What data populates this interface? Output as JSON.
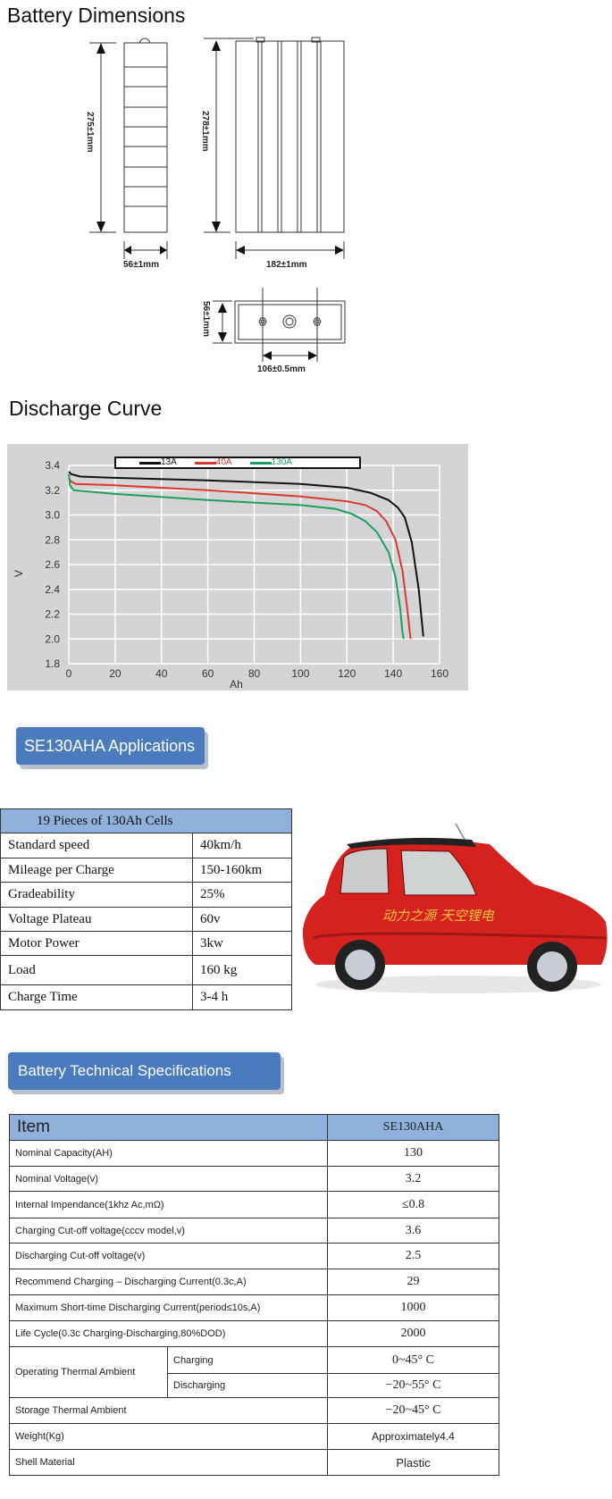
{
  "dimensions": {
    "title": "Battery Dimensions",
    "height_side": "275±1mm",
    "width_side": "56±1mm",
    "height_front": "278±1mm",
    "width_front": "182±1mm",
    "depth_top": "56±1mm",
    "terminal_spacing": "106±0.5mm"
  },
  "discharge": {
    "title": "Discharge Curve"
  },
  "chart_data": {
    "type": "line",
    "title": "",
    "xlabel": "Ah",
    "ylabel": "V",
    "xlim": [
      0,
      160
    ],
    "ylim": [
      1.8,
      3.4
    ],
    "xticks": [
      "0",
      "20",
      "40",
      "60",
      "80",
      "100",
      "120",
      "140",
      "160"
    ],
    "yticks": [
      "1.8",
      "2.0",
      "2.2",
      "2.4",
      "2.6",
      "2.8",
      "3.0",
      "3.2",
      "3.4"
    ],
    "grid": true,
    "legend": "top",
    "series": [
      {
        "name": "13A",
        "color": "#111111",
        "x": [
          0,
          1,
          5,
          20,
          60,
          100,
          120,
          130,
          138,
          142,
          145,
          148,
          151,
          153
        ],
        "y": [
          3.35,
          3.33,
          3.31,
          3.3,
          3.28,
          3.25,
          3.22,
          3.18,
          3.12,
          3.06,
          2.98,
          2.78,
          2.4,
          2.02
        ]
      },
      {
        "name": "40A",
        "color": "#d93a2b",
        "x": [
          0,
          1,
          3,
          20,
          60,
          100,
          120,
          128,
          133,
          137,
          141,
          144,
          146,
          147.5
        ],
        "y": [
          3.3,
          3.27,
          3.25,
          3.24,
          3.2,
          3.15,
          3.11,
          3.08,
          3.03,
          2.95,
          2.8,
          2.55,
          2.25,
          2.0
        ]
      },
      {
        "name": "130A",
        "color": "#1aa160",
        "x": [
          0,
          0.5,
          2,
          20,
          60,
          100,
          115,
          122,
          128,
          133,
          138,
          141,
          143,
          144,
          144.5
        ],
        "y": [
          3.33,
          3.24,
          3.2,
          3.17,
          3.12,
          3.08,
          3.05,
          3.01,
          2.95,
          2.86,
          2.7,
          2.5,
          2.25,
          2.05,
          2.0
        ]
      }
    ]
  },
  "applications": {
    "button_label": "SE130AHA  Applications",
    "table_title": "19 Pieces of 130Ah Cells",
    "rows": [
      {
        "label": "Standard speed",
        "value": "40km/h"
      },
      {
        "label": "Mileage per Charge",
        "value": "150-160km"
      },
      {
        "label": "Gradeability",
        "value": "25%"
      },
      {
        "label": "Voltage Plateau",
        "value": "60v"
      },
      {
        "label": "Motor Power",
        "value": "3kw"
      },
      {
        "label": "Load",
        "value": "160 kg"
      },
      {
        "label": "Charge Time",
        "value": "3-4 h"
      }
    ],
    "car_decal": "动力之源 天空锂电"
  },
  "specs": {
    "button_label": "Battery Technical Specifications",
    "header_item": "Item",
    "header_model": "SE130AHA",
    "rows": [
      {
        "label": "Nominal Capacity(AH)",
        "value": "130"
      },
      {
        "label": "Nominal Voltage(v)",
        "value": "3.2"
      },
      {
        "label": "Internal Impendance(1khz Ac,mΩ)",
        "value": "≤0.8"
      },
      {
        "label": "Charging Cut-off voltage(cccv model,v)",
        "value": "3.6"
      },
      {
        "label": "Discharging Cut-off voltage(v)",
        "value": "2.5"
      },
      {
        "label": "Recommend Charging – Discharging Current(0.3c,A)",
        "value": "29"
      },
      {
        "label": "Maximum Short-time Discharging Current(period≤10s,A)",
        "value": "1000"
      },
      {
        "label": "Life Cycle(0.3c Charging-Discharging,80%DOD)",
        "value": "2000"
      }
    ],
    "operating": {
      "label": "Operating Thermal Ambient",
      "charging_label": "Charging",
      "charging_value": "0~45° C",
      "discharging_label": "Discharging",
      "discharging_value": "−20~55° C"
    },
    "storage": {
      "label": "Storage Thermal Ambient",
      "value": "−20~45° C"
    },
    "weight": {
      "label": "Weight(Kg)",
      "value": "Approximately4.4"
    },
    "shell": {
      "label": "Shell Material",
      "value": "Plastic"
    }
  }
}
